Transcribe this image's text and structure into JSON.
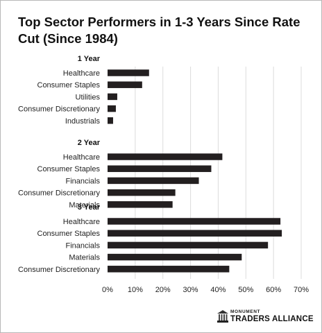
{
  "chart_data": {
    "type": "bar",
    "orientation": "horizontal",
    "title": "Top Sector Performers in 1-3 Years Since Rate Cut (Since 1984)",
    "xlim": [
      0,
      70
    ],
    "xticks": [
      "0%",
      "10%",
      "20%",
      "30%",
      "40%",
      "50%",
      "60%",
      "70%"
    ],
    "grid": true,
    "bar_color": "#231f20",
    "groups": [
      {
        "label": "1 Year",
        "categories": [
          "Healthcare",
          "Consumer Staples",
          "Utilities",
          "Consumer Discretionary",
          "Industrials"
        ],
        "values": [
          15,
          12.5,
          3.5,
          3,
          2
        ]
      },
      {
        "label": "2 Year",
        "categories": [
          "Healthcare",
          "Consumer Staples",
          "Financials",
          "Consumer Discretionary",
          "Materials"
        ],
        "values": [
          41.5,
          37.5,
          33,
          24.5,
          23.5
        ]
      },
      {
        "label": "3 Year",
        "categories": [
          "Healthcare",
          "Consumer Staples",
          "Financials",
          "Materials",
          "Consumer Discretionary"
        ],
        "values": [
          62.5,
          63,
          58,
          48.5,
          44
        ]
      }
    ]
  },
  "logo": {
    "top": "MONUMENT",
    "main": "TRADERS ALLIANCE"
  }
}
